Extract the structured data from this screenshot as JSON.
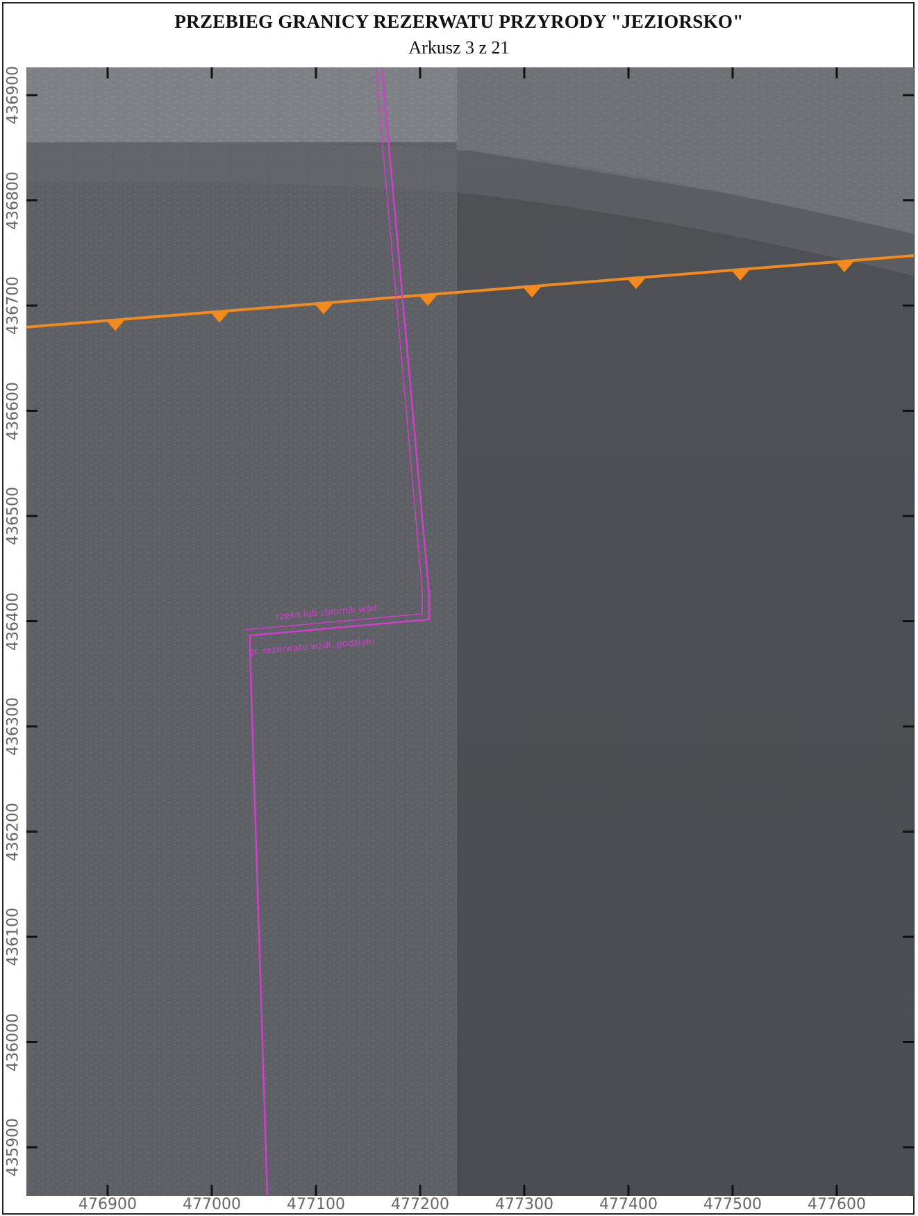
{
  "header": {
    "title": "PRZEBIEG GRANICY REZERWATU PRZYRODY \"JEZIORSKO\"",
    "subtitle": "Arkusz 3 z 21"
  },
  "axes": {
    "x_ticks": [
      "476900",
      "477000",
      "477100",
      "477200",
      "477300",
      "477400",
      "477500",
      "477600"
    ],
    "y_ticks": [
      "436900",
      "436800",
      "436700",
      "436600",
      "436500",
      "436400",
      "436300",
      "436200",
      "436100",
      "436000",
      "435900"
    ]
  },
  "map": {
    "boundary_color": "#d63ad0",
    "orange_line_color": "#f28a1e",
    "annotation_line1": "rzeka lub zbiornik wód",
    "annotation_line2": "gr. rezerwatu wzdł. podziału"
  }
}
